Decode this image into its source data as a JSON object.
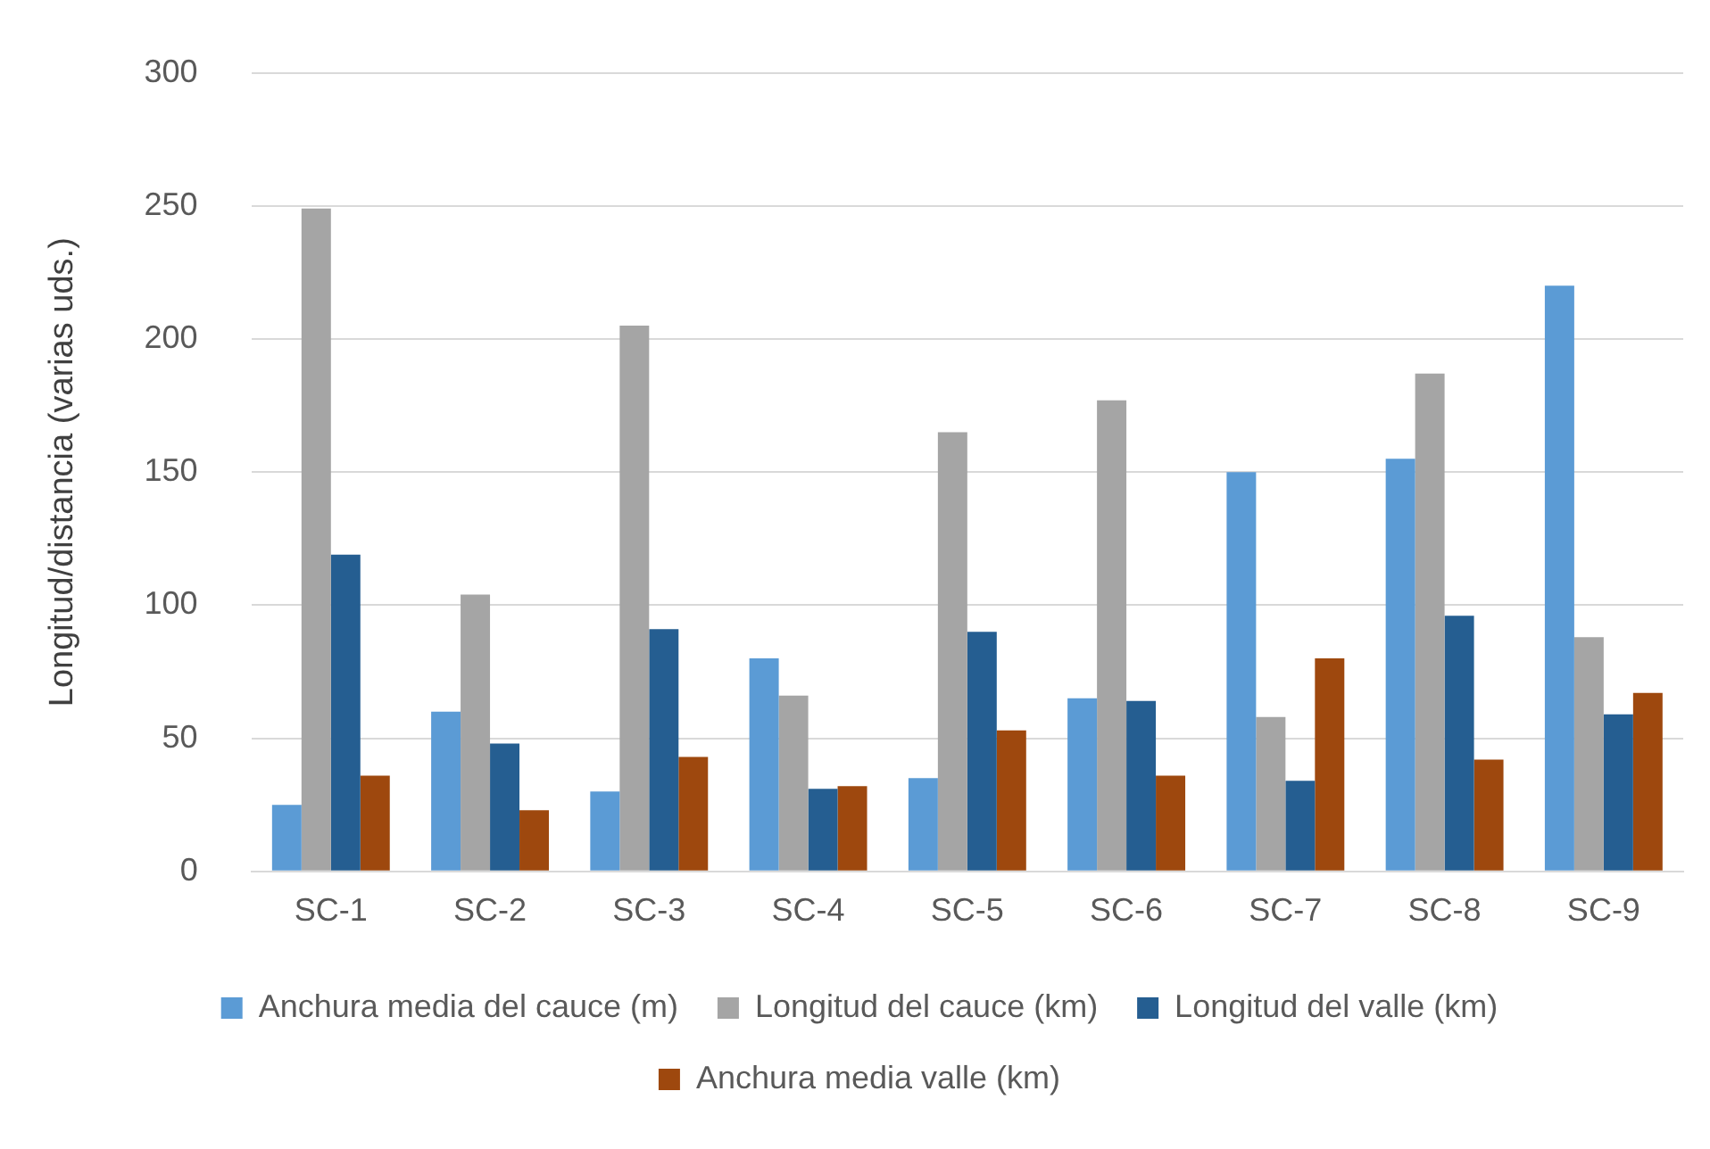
{
  "chart_data": {
    "type": "bar",
    "ylabel": "Longitud/distancia (varias uds.)",
    "categories": [
      "SC-1",
      "SC-2",
      "SC-3",
      "SC-4",
      "SC-5",
      "SC-6",
      "SC-7",
      "SC-8",
      "SC-9"
    ],
    "series": [
      {
        "name": "Anchura media del cauce (m)",
        "color": "#5b9bd5",
        "values": [
          25,
          60,
          30,
          80,
          35,
          65,
          150,
          155,
          220
        ]
      },
      {
        "name": "Longitud del cauce (km)",
        "color": "#a5a5a5",
        "values": [
          249,
          104,
          205,
          66,
          165,
          177,
          58,
          187,
          88
        ]
      },
      {
        "name": "Longitud del valle (km)",
        "color": "#255e91",
        "values": [
          119,
          48,
          91,
          31,
          90,
          64,
          34,
          96,
          59
        ]
      },
      {
        "name": "Anchura media valle (km)",
        "color": "#9e480e",
        "values": [
          36,
          23,
          43,
          32,
          53,
          36,
          80,
          42,
          67
        ]
      }
    ],
    "ylim": [
      0,
      300
    ],
    "yticks": [
      0,
      50,
      100,
      150,
      200,
      250,
      300
    ],
    "grid": "y",
    "legend": "bottom"
  }
}
